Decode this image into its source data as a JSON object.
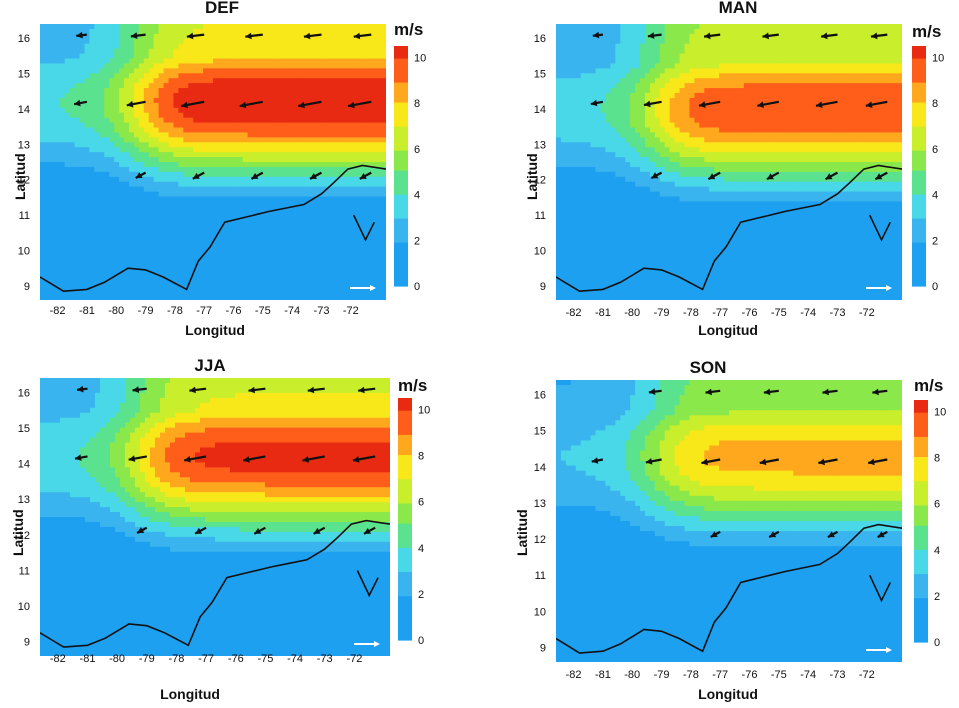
{
  "figure": {
    "x_axis_label": "Longitud",
    "y_axis_label": "Latitud",
    "colorbar_unit": "m/s",
    "x_ticks": [
      -82,
      -81,
      -80,
      -79,
      -78,
      -77,
      -76,
      -75,
      -74,
      -73,
      -72
    ],
    "y_ticks": [
      9,
      10,
      11,
      12,
      13,
      14,
      15,
      16
    ],
    "colorbar_ticks": [
      0,
      2,
      4,
      6,
      8,
      10
    ],
    "colorbar_range": [
      0,
      10.5
    ],
    "colors": {
      "0": "#1ea0f0",
      "2": "#3ab4ee",
      "3": "#48d8e8",
      "4": "#5be28e",
      "5": "#8be84a",
      "6": "#c8ee2c",
      "7": "#f8e81a",
      "8": "#ffa81e",
      "9": "#ff5e1a",
      "10": "#e82a12",
      "11": "#a8180e"
    },
    "coastline_color": "#111111",
    "arrow_color": "#111111"
  },
  "panels": [
    {
      "id": "DEF",
      "title": "DEF",
      "peak_speed": 11.0,
      "jet_core_lat": 14.2
    },
    {
      "id": "MAN",
      "title": "MAN",
      "peak_speed": 10.0,
      "jet_core_lat": 14.0
    },
    {
      "id": "JJA",
      "title": "JJA",
      "peak_speed": 10.4,
      "jet_core_lat": 14.2
    },
    {
      "id": "SON",
      "title": "SON",
      "peak_speed": 8.6,
      "jet_core_lat": 14.3
    }
  ]
}
